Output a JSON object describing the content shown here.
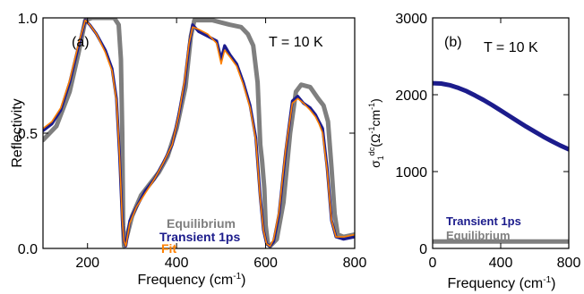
{
  "chart_data": [
    {
      "type": "line",
      "panel_label": "(a)",
      "annotation": "T = 10 K",
      "xlabel": "Frequency (cm",
      "xlabel_sup": "-1",
      "xlabel_end": ")",
      "ylabel": "Reflectivity",
      "xlim": [
        100,
        800
      ],
      "ylim": [
        0,
        1
      ],
      "x_ticks": [
        200,
        400,
        600,
        800
      ],
      "y_ticks": [
        0.0,
        0.5,
        1.0
      ],
      "y_tick_labels": [
        "0.0",
        "0.5",
        "1.0"
      ],
      "legend_position": "bottom-center",
      "series": [
        {
          "name": "Equilibrium",
          "color": "#7f7f7f",
          "points": [
            [
              100,
              0.47
            ],
            [
              130,
              0.53
            ],
            [
              160,
              0.68
            ],
            [
              180,
              0.85
            ],
            [
              195,
              0.99
            ],
            [
              210,
              1.0
            ],
            [
              240,
              1.0
            ],
            [
              260,
              1.0
            ],
            [
              270,
              0.97
            ],
            [
              275,
              0.82
            ],
            [
              278,
              0.5
            ],
            [
              280,
              0.1
            ],
            [
              282,
              0.01
            ],
            [
              288,
              0.05
            ],
            [
              300,
              0.14
            ],
            [
              320,
              0.23
            ],
            [
              340,
              0.28
            ],
            [
              360,
              0.33
            ],
            [
              380,
              0.4
            ],
            [
              400,
              0.52
            ],
            [
              420,
              0.7
            ],
            [
              432,
              0.92
            ],
            [
              440,
              0.99
            ],
            [
              480,
              0.99
            ],
            [
              500,
              0.98
            ],
            [
              520,
              0.97
            ],
            [
              545,
              0.96
            ],
            [
              560,
              0.93
            ],
            [
              572,
              0.88
            ],
            [
              582,
              0.72
            ],
            [
              588,
              0.45
            ],
            [
              592,
              0.38
            ],
            [
              597,
              0.26
            ],
            [
              600,
              0.1
            ],
            [
              605,
              0.02
            ],
            [
              610,
              0.01
            ],
            [
              625,
              0.04
            ],
            [
              640,
              0.2
            ],
            [
              655,
              0.5
            ],
            [
              668,
              0.68
            ],
            [
              680,
              0.71
            ],
            [
              700,
              0.7
            ],
            [
              718,
              0.65
            ],
            [
              730,
              0.62
            ],
            [
              740,
              0.55
            ],
            [
              748,
              0.35
            ],
            [
              755,
              0.15
            ],
            [
              762,
              0.06
            ],
            [
              775,
              0.05
            ],
            [
              800,
              0.06
            ]
          ]
        },
        {
          "name": "Transient 1ps",
          "color": "#1c1c8c",
          "points": [
            [
              100,
              0.51
            ],
            [
              120,
              0.54
            ],
            [
              140,
              0.6
            ],
            [
              160,
              0.72
            ],
            [
              180,
              0.88
            ],
            [
              195,
              0.99
            ],
            [
              205,
              0.97
            ],
            [
              220,
              0.93
            ],
            [
              240,
              0.86
            ],
            [
              255,
              0.78
            ],
            [
              265,
              0.65
            ],
            [
              272,
              0.4
            ],
            [
              278,
              0.12
            ],
            [
              282,
              0.03
            ],
            [
              286,
              0.01
            ],
            [
              295,
              0.12
            ],
            [
              310,
              0.18
            ],
            [
              330,
              0.25
            ],
            [
              350,
              0.3
            ],
            [
              370,
              0.37
            ],
            [
              390,
              0.45
            ],
            [
              405,
              0.58
            ],
            [
              418,
              0.72
            ],
            [
              428,
              0.88
            ],
            [
              436,
              0.97
            ],
            [
              450,
              0.94
            ],
            [
              470,
              0.92
            ],
            [
              490,
              0.9
            ],
            [
              500,
              0.82
            ],
            [
              508,
              0.88
            ],
            [
              520,
              0.84
            ],
            [
              535,
              0.8
            ],
            [
              550,
              0.72
            ],
            [
              565,
              0.62
            ],
            [
              578,
              0.48
            ],
            [
              588,
              0.22
            ],
            [
              595,
              0.08
            ],
            [
              602,
              0.02
            ],
            [
              610,
              0.01
            ],
            [
              618,
              0.03
            ],
            [
              630,
              0.15
            ],
            [
              645,
              0.42
            ],
            [
              660,
              0.64
            ],
            [
              672,
              0.66
            ],
            [
              685,
              0.63
            ],
            [
              700,
              0.61
            ],
            [
              712,
              0.58
            ],
            [
              720,
              0.55
            ],
            [
              728,
              0.52
            ],
            [
              738,
              0.35
            ],
            [
              748,
              0.12
            ],
            [
              758,
              0.05
            ],
            [
              775,
              0.04
            ],
            [
              800,
              0.05
            ]
          ]
        },
        {
          "name": "Fit",
          "color": "#ff8000",
          "points": [
            [
              100,
              0.52
            ],
            [
              120,
              0.55
            ],
            [
              140,
              0.61
            ],
            [
              160,
              0.73
            ],
            [
              180,
              0.89
            ],
            [
              195,
              0.99
            ],
            [
              205,
              0.97
            ],
            [
              220,
              0.93
            ],
            [
              240,
              0.85
            ],
            [
              255,
              0.77
            ],
            [
              265,
              0.64
            ],
            [
              272,
              0.4
            ],
            [
              278,
              0.12
            ],
            [
              282,
              0.03
            ],
            [
              286,
              0.01
            ],
            [
              295,
              0.11
            ],
            [
              310,
              0.18
            ],
            [
              330,
              0.24
            ],
            [
              350,
              0.3
            ],
            [
              370,
              0.37
            ],
            [
              390,
              0.45
            ],
            [
              405,
              0.58
            ],
            [
              418,
              0.73
            ],
            [
              428,
              0.89
            ],
            [
              436,
              0.96
            ],
            [
              450,
              0.95
            ],
            [
              470,
              0.93
            ],
            [
              490,
              0.89
            ],
            [
              500,
              0.8
            ],
            [
              508,
              0.86
            ],
            [
              520,
              0.83
            ],
            [
              535,
              0.79
            ],
            [
              550,
              0.71
            ],
            [
              565,
              0.61
            ],
            [
              578,
              0.47
            ],
            [
              588,
              0.21
            ],
            [
              595,
              0.08
            ],
            [
              602,
              0.02
            ],
            [
              610,
              0.01
            ],
            [
              618,
              0.04
            ],
            [
              630,
              0.16
            ],
            [
              645,
              0.43
            ],
            [
              660,
              0.63
            ],
            [
              672,
              0.65
            ],
            [
              685,
              0.63
            ],
            [
              700,
              0.6
            ],
            [
              712,
              0.57
            ],
            [
              720,
              0.54
            ],
            [
              728,
              0.5
            ],
            [
              738,
              0.34
            ],
            [
              748,
              0.12
            ],
            [
              758,
              0.05
            ],
            [
              775,
              0.05
            ],
            [
              800,
              0.06
            ]
          ]
        }
      ]
    },
    {
      "type": "line",
      "panel_label": "(b)",
      "annotation": "T = 10 K",
      "xlabel": "Frequency (cm",
      "xlabel_sup": "-1",
      "xlabel_end": ")",
      "ylabel": "σ",
      "ylabel_sub": "1",
      "ylabel_sup": "dc",
      "ylabel_tail": "(Ω",
      "ylabel_tail_sup": "-1",
      "ylabel_tail2": "cm",
      "ylabel_tail2_sup": "-1",
      "ylabel_close": ")",
      "xlim": [
        0,
        800
      ],
      "ylim": [
        0,
        3000
      ],
      "x_ticks": [
        0,
        400,
        800
      ],
      "y_ticks": [
        0,
        1000,
        2000,
        3000
      ],
      "legend_position": "bottom-left",
      "series": [
        {
          "name": "Transient 1ps",
          "color": "#1c1c8c",
          "points": [
            [
              0,
              2150
            ],
            [
              50,
              2145
            ],
            [
              100,
              2125
            ],
            [
              150,
              2090
            ],
            [
              200,
              2045
            ],
            [
              250,
              1990
            ],
            [
              300,
              1930
            ],
            [
              350,
              1865
            ],
            [
              400,
              1795
            ],
            [
              450,
              1725
            ],
            [
              500,
              1655
            ],
            [
              550,
              1585
            ],
            [
              600,
              1520
            ],
            [
              650,
              1455
            ],
            [
              700,
              1395
            ],
            [
              750,
              1340
            ],
            [
              800,
              1290
            ]
          ]
        },
        {
          "name": "Equilibrium",
          "color": "#7f7f7f",
          "points": [
            [
              0,
              90
            ],
            [
              800,
              90
            ]
          ]
        }
      ]
    }
  ]
}
